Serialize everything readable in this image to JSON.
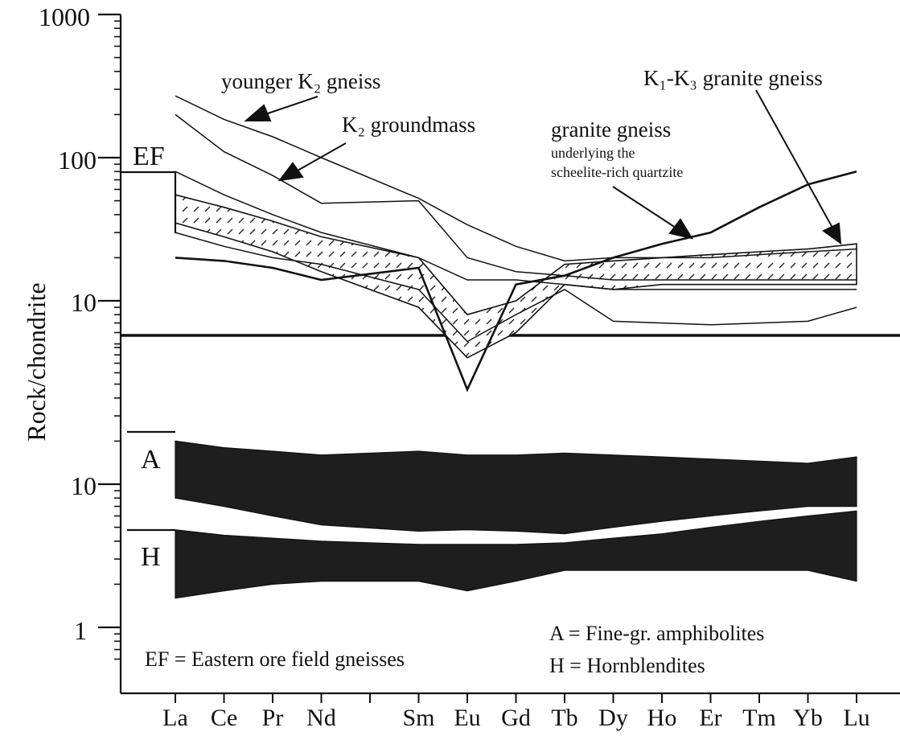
{
  "chart_data": {
    "type": "line",
    "ylabel": "Rock/chondrite",
    "yscale": "log",
    "categories": [
      "La",
      "Ce",
      "Pr",
      "Nd",
      "",
      "Sm",
      "Eu",
      "Gd",
      "Tb",
      "Dy",
      "Ho",
      "Er",
      "Tm",
      "Yb",
      "Lu"
    ],
    "upper_panel": {
      "yticks": [
        "1000",
        "100",
        "10"
      ],
      "ylim": [
        3,
        1000
      ],
      "series": [
        {
          "key": "younger_k2",
          "x": [
            "La",
            "Ce",
            "Pr",
            "Nd",
            "Sm",
            "Eu",
            "Gd",
            "Tb",
            "Dy",
            "Ho",
            "Er",
            "Tm",
            "Yb",
            "Lu"
          ],
          "values": [
            270,
            185,
            140,
            100,
            52,
            34,
            24,
            19,
            20,
            20,
            20,
            21,
            22,
            23
          ]
        },
        {
          "key": "k2_groundmass",
          "x": [
            "La",
            "Ce",
            "Pr",
            "Nd",
            "Sm",
            "Eu",
            "Gd",
            "Tb",
            "Dy",
            "Ho",
            "Er",
            "Tm",
            "Yb",
            "Lu"
          ],
          "values": [
            200,
            110,
            75,
            48,
            50,
            20,
            16,
            15,
            14,
            14,
            14,
            14,
            14,
            14
          ]
        },
        {
          "key": "ef_top",
          "x": [
            "La",
            "Ce",
            "Pr",
            "Nd",
            "Sm",
            "Eu",
            "Gd",
            "Tb",
            "Dy",
            "Ho",
            "Er",
            "Tm",
            "Yb",
            "Lu"
          ],
          "values": [
            80,
            55,
            40,
            30,
            20,
            14,
            14,
            13,
            12,
            12,
            12,
            12,
            12,
            12
          ]
        },
        {
          "key": "granite_gneiss_underlying",
          "x": [
            "La",
            "Ce",
            "Pr",
            "Nd",
            "Sm",
            "Eu",
            "Gd",
            "Tb",
            "Dy",
            "Ho",
            "Er",
            "Tm",
            "Yb",
            "Lu"
          ],
          "values": [
            20,
            19,
            17,
            14,
            17,
            2.4,
            13,
            15,
            20,
            25,
            30,
            45,
            65,
            80
          ]
        },
        {
          "key": "lower_line",
          "x": [
            "La",
            "Ce",
            "Pr",
            "Nd",
            "Sm",
            "Eu",
            "Gd",
            "Tb",
            "Dy",
            "Ho",
            "Er",
            "Tm",
            "Yb",
            "Lu"
          ],
          "values": [
            30,
            24,
            20,
            18,
            12,
            5.2,
            8,
            12,
            7.2,
            7,
            6.8,
            7,
            7.2,
            9
          ]
        }
      ],
      "bands": [
        {
          "key": "ef_band",
          "x": [
            "La",
            "Ce",
            "Pr",
            "Nd",
            "Sm",
            "Eu",
            "Gd",
            "Tb",
            "Dy",
            "Ho",
            "Er",
            "Tm",
            "Yb",
            "Lu"
          ],
          "upper": [
            55,
            45,
            36,
            28,
            20,
            8,
            10,
            18,
            19,
            20,
            21,
            22,
            23,
            25
          ],
          "lower": [
            35,
            28,
            22,
            16,
            9,
            4,
            6,
            13,
            12,
            13,
            13,
            13,
            13,
            13
          ]
        }
      ]
    },
    "lower_panel": {
      "yticks": [
        "10",
        "1"
      ],
      "ylim": [
        0.5,
        25
      ],
      "bands": [
        {
          "key": "A",
          "x": [
            "La",
            "Ce",
            "Pr",
            "Nd",
            "Sm",
            "Eu",
            "Gd",
            "Tb",
            "Dy",
            "Ho",
            "Er",
            "Tm",
            "Yb",
            "Lu"
          ],
          "upper": [
            20,
            18,
            17,
            16,
            17,
            16,
            16,
            16.5,
            16,
            15.5,
            15,
            14.5,
            14,
            15.5
          ],
          "lower": [
            8,
            7,
            6,
            5.2,
            4.7,
            4.8,
            4.7,
            4.5,
            5,
            5.5,
            6,
            6.5,
            7,
            7
          ]
        },
        {
          "key": "H",
          "x": [
            "La",
            "Ce",
            "Pr",
            "Nd",
            "Sm",
            "Eu",
            "Gd",
            "Tb",
            "Dy",
            "Ho",
            "Er",
            "Tm",
            "Yb",
            "Lu"
          ],
          "upper": [
            4.8,
            4.4,
            4.2,
            4,
            3.8,
            3.8,
            3.8,
            3.9,
            4.2,
            4.5,
            5,
            5.5,
            6,
            6.5
          ],
          "lower": [
            1.6,
            1.8,
            2,
            2.1,
            2.1,
            1.8,
            2.1,
            2.5,
            2.5,
            2.5,
            2.5,
            2.5,
            2.5,
            2.1
          ]
        }
      ]
    },
    "annotations": {
      "younger_k2": "younger K₂ gneiss",
      "k2_groundmass": "K₂ groundmass",
      "granite_gneiss": "granite gneiss",
      "underlying_1": "underlying the",
      "underlying_2": "scheelite-rich quartzite",
      "k1k3": "K₁-K₃ granite gneiss",
      "ef_tag": "EF",
      "a_tag": "A",
      "h_tag": "H",
      "ef_legend": "EF = Eastern ore field gneisses",
      "a_legend": "A = Fine-gr. amphibolites",
      "h_legend": "H = Hornblendites"
    },
    "colors": {
      "ink": "#111111",
      "band_fill": "#1e1e1e",
      "paper": "#ffffff"
    }
  }
}
